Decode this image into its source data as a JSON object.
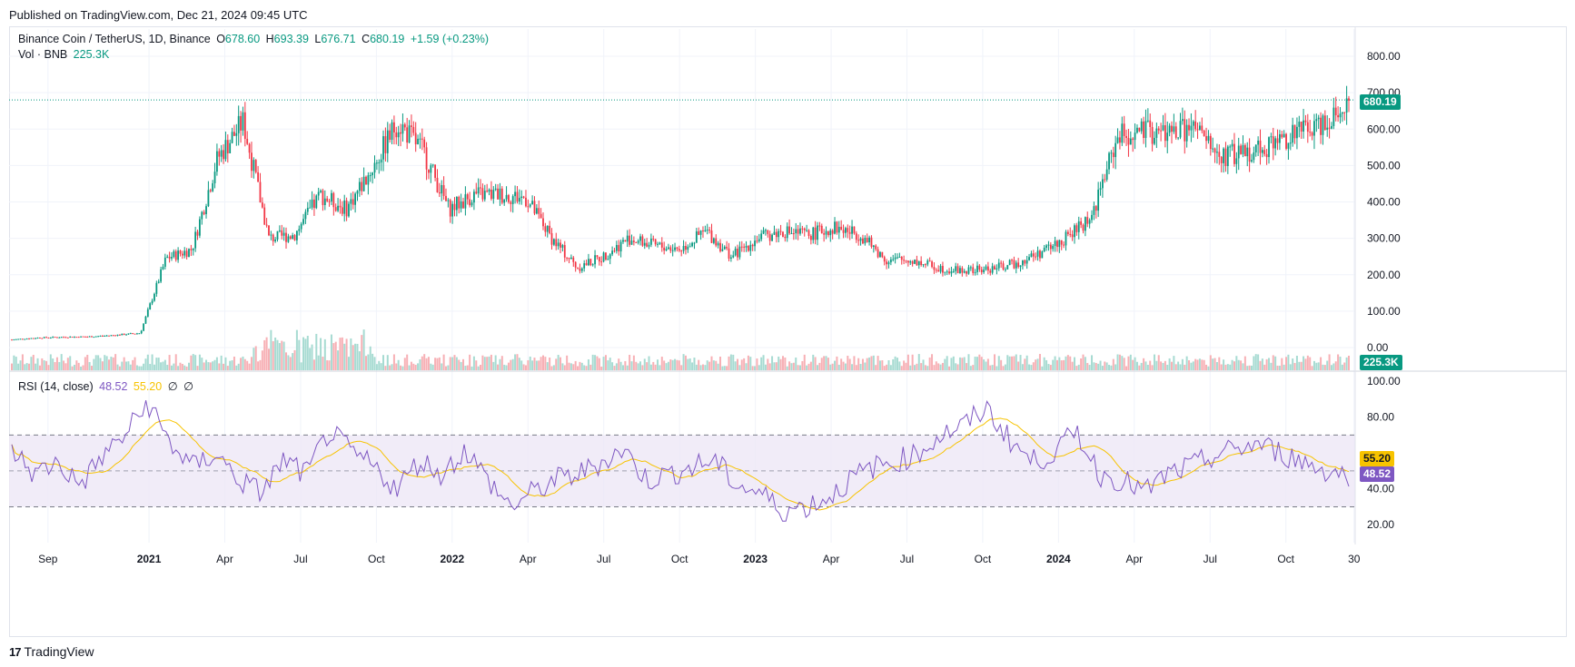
{
  "header": {
    "published": "Published on TradingView.com, Dec 21, 2024 09:45 UTC"
  },
  "legend": {
    "symbol": "Binance Coin / TetherUS, 1D, Binance",
    "o_label": "O",
    "o": "678.60",
    "h_label": "H",
    "h": "693.39",
    "l_label": "L",
    "l": "676.71",
    "c_label": "C",
    "c": "680.19",
    "change": "+1.59 (+0.23%)",
    "vol_label": "Vol · BNB",
    "vol": "225.3K"
  },
  "rsi_legend": {
    "label": "RSI (14, close)",
    "rsi": "48.52",
    "ma": "55.20",
    "n1": "∅",
    "n2": "∅"
  },
  "badges": {
    "price": "680.19",
    "volume": "225.3K",
    "rsi_ma": "55.20",
    "rsi": "48.52"
  },
  "footer": {
    "brand": "TradingView",
    "logo_icon": "tradingview-logo-icon"
  },
  "colors": {
    "up": "#089981",
    "down": "#f23645",
    "rsi": "#7e57c2",
    "rsi_ma": "#f7c300",
    "rsi_band": "#ede7f6",
    "volume_up": "#a7dbd2",
    "volume_down": "#f7b0b5"
  },
  "chart_data": [
    {
      "type": "candlestick",
      "title": "Binance Coin / TetherUS, 1D, Binance",
      "y_axis_ticks": [
        "800.00",
        "700.00",
        "600.00",
        "500.00",
        "400.00",
        "300.00",
        "200.00",
        "100.00",
        "0.00"
      ],
      "ylim": [
        0,
        800
      ],
      "x_axis_ticks": [
        "Sep",
        "2021",
        "Apr",
        "Jul",
        "Oct",
        "2022",
        "Apr",
        "Jul",
        "Oct",
        "2023",
        "Apr",
        "Jul",
        "Oct",
        "2024",
        "Apr",
        "Jul",
        "Oct",
        "30"
      ],
      "x_bold_ticks": [
        "2021",
        "2022",
        "2023",
        "2024"
      ],
      "last_price": 680.19,
      "close_approx": {
        "dates": [
          "2020-08",
          "2020-09",
          "2020-10",
          "2020-11",
          "2020-12",
          "2021-01",
          "2021-02",
          "2021-03",
          "2021-04",
          "2021-05",
          "2021-06",
          "2021-07",
          "2021-08",
          "2021-09",
          "2021-10",
          "2021-11",
          "2021-12",
          "2022-01",
          "2022-02",
          "2022-03",
          "2022-04",
          "2022-05",
          "2022-06",
          "2022-07",
          "2022-08",
          "2022-09",
          "2022-10",
          "2022-11",
          "2022-12",
          "2023-01",
          "2023-02",
          "2023-03",
          "2023-04",
          "2023-05",
          "2023-06",
          "2023-07",
          "2023-08",
          "2023-09",
          "2023-10",
          "2023-11",
          "2023-12",
          "2024-01",
          "2024-02",
          "2024-03",
          "2024-04",
          "2024-05",
          "2024-06",
          "2024-07",
          "2024-08",
          "2024-09",
          "2024-10",
          "2024-11",
          "2024-12"
        ],
        "values": [
          22,
          27,
          29,
          30,
          34,
          40,
          245,
          270,
          520,
          620,
          300,
          310,
          420,
          380,
          490,
          620,
          540,
          380,
          420,
          420,
          410,
          300,
          220,
          250,
          300,
          280,
          270,
          320,
          250,
          300,
          320,
          310,
          330,
          310,
          240,
          240,
          220,
          210,
          215,
          230,
          260,
          300,
          360,
          580,
          590,
          590,
          600,
          520,
          540,
          560,
          590,
          620,
          680
        ]
      }
    },
    {
      "type": "bar",
      "title": "Vol · BNB",
      "last_value": "225.3K"
    },
    {
      "type": "line",
      "title": "RSI (14, close)",
      "series": [
        {
          "name": "RSI",
          "last": 48.52
        },
        {
          "name": "MA",
          "last": 55.2
        }
      ],
      "y_axis_ticks": [
        "100.00",
        "80.00",
        "40.00",
        "20.00"
      ],
      "ylim": [
        10,
        100
      ],
      "bands": [
        30,
        50,
        70
      ],
      "rsi_approx": [
        62,
        48,
        55,
        42,
        58,
        70,
        88,
        65,
        52,
        60,
        45,
        38,
        56,
        48,
        72,
        60,
        52,
        40,
        56,
        48,
        62,
        45,
        30,
        38,
        45,
        48,
        55,
        62,
        45,
        48,
        52,
        56,
        42,
        38,
        28,
        30,
        35,
        45,
        52,
        55,
        60,
        70,
        75,
        85,
        68,
        55,
        60,
        72,
        48,
        45,
        38,
        48,
        52,
        58,
        62,
        65,
        60,
        55,
        50,
        48
      ]
    }
  ]
}
